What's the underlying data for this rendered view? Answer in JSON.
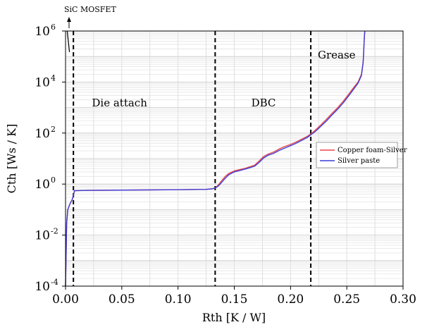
{
  "chart_data": {
    "type": "line",
    "xlabel": "Rth [K / W]",
    "ylabel": "Cth [Ws / K]",
    "xlim": [
      0.0,
      0.3
    ],
    "ylim": [
      0.0001,
      1000000
    ],
    "yscale": "log",
    "grid": true,
    "x_ticks": [
      "0.00",
      "0.05",
      "0.10",
      "0.15",
      "0.20",
      "0.25",
      "0.30"
    ],
    "y_ticks": [
      {
        "base": "10",
        "exp": "-4"
      },
      {
        "base": "10",
        "exp": "-2"
      },
      {
        "base": "10",
        "exp": "0"
      },
      {
        "base": "10",
        "exp": "2"
      },
      {
        "base": "10",
        "exp": "4"
      },
      {
        "base": "10",
        "exp": "6"
      }
    ],
    "legend_position": "right",
    "annotation": "SiC MOSFET",
    "regions": [
      {
        "label": "Die attach",
        "x": 0.048
      },
      {
        "label": "DBC",
        "x": 0.176
      },
      {
        "label": "Grease",
        "x": 0.241
      }
    ],
    "boundaries": [
      0.007,
      0.133,
      0.218
    ],
    "series": [
      {
        "name": "Copper foam-Silver",
        "color": "#e8474f",
        "x": [
          0.0,
          0.001,
          0.002,
          0.004,
          0.006,
          0.008,
          0.02,
          0.05,
          0.1,
          0.125,
          0.13,
          0.133,
          0.136,
          0.139,
          0.142,
          0.145,
          0.15,
          0.16,
          0.168,
          0.172,
          0.176,
          0.18,
          0.185,
          0.19,
          0.195,
          0.2,
          0.205,
          0.21,
          0.215,
          0.218,
          0.222,
          0.227,
          0.232,
          0.237,
          0.242,
          0.247,
          0.252,
          0.256,
          0.26,
          0.263,
          0.2645,
          0.265,
          0.2655,
          0.266
        ],
        "y": [
          0.0001,
          0.03,
          0.1,
          0.17,
          0.25,
          0.55,
          0.57,
          0.58,
          0.6,
          0.62,
          0.65,
          0.7,
          0.95,
          1.4,
          2.0,
          2.6,
          3.3,
          4.2,
          5.5,
          8.0,
          12.0,
          15.0,
          18.0,
          24.0,
          30.0,
          36.0,
          45.0,
          58.0,
          75.0,
          92.0,
          130.0,
          210.0,
          350.0,
          600.0,
          1000.0,
          1800.0,
          3500.0,
          6000.0,
          10000.0,
          20000.0,
          60000.0,
          150000.0,
          500000.0,
          1000000.0
        ]
      },
      {
        "name": "Silver paste",
        "color": "#3c3cd6",
        "x": [
          0.0,
          0.001,
          0.002,
          0.004,
          0.006,
          0.008,
          0.02,
          0.05,
          0.1,
          0.125,
          0.13,
          0.133,
          0.136,
          0.139,
          0.142,
          0.145,
          0.15,
          0.16,
          0.168,
          0.172,
          0.176,
          0.18,
          0.185,
          0.19,
          0.195,
          0.2,
          0.205,
          0.21,
          0.215,
          0.218,
          0.222,
          0.227,
          0.232,
          0.237,
          0.242,
          0.247,
          0.252,
          0.256,
          0.26,
          0.263,
          0.2645,
          0.265,
          0.2655,
          0.266
        ],
        "y": [
          0.0001,
          0.03,
          0.1,
          0.17,
          0.25,
          0.55,
          0.57,
          0.58,
          0.6,
          0.62,
          0.65,
          0.7,
          0.85,
          1.2,
          1.7,
          2.3,
          3.0,
          3.9,
          5.0,
          7.0,
          10.5,
          13.5,
          16.0,
          21.0,
          26.0,
          32.0,
          40.0,
          52.0,
          68.0,
          85.0,
          115.0,
          185.0,
          300.0,
          520.0,
          870.0,
          1550.0,
          3000.0,
          5200.0,
          9000.0,
          18000.0,
          55000.0,
          140000.0,
          450000.0,
          1000000.0
        ]
      }
    ]
  }
}
